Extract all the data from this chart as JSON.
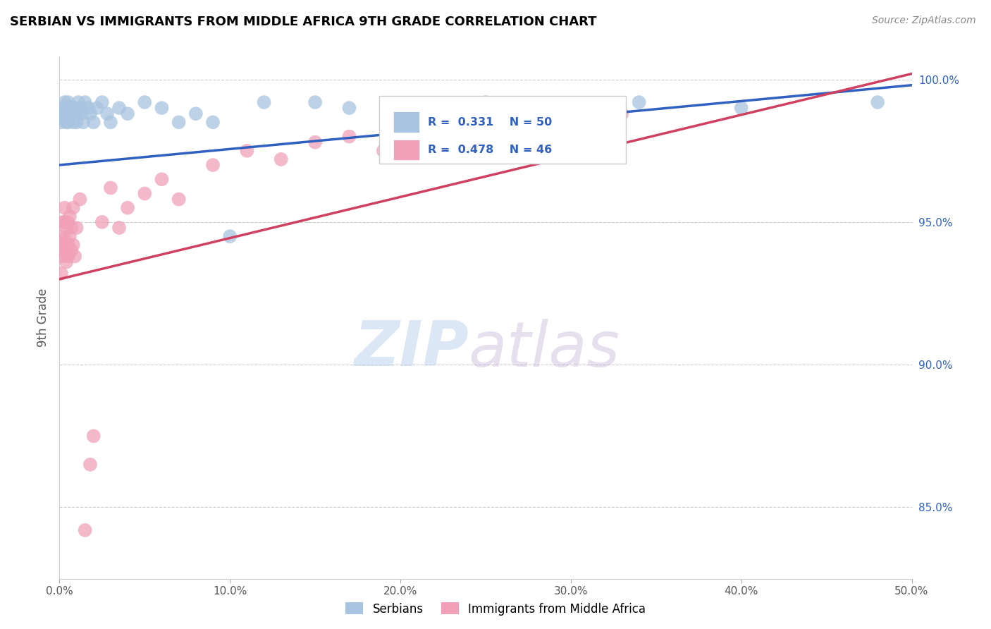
{
  "title": "SERBIAN VS IMMIGRANTS FROM MIDDLE AFRICA 9TH GRADE CORRELATION CHART",
  "source": "Source: ZipAtlas.com",
  "ylabel": "9th Grade",
  "xlim": [
    0.0,
    0.5
  ],
  "ylim": [
    0.825,
    1.008
  ],
  "xticks": [
    0.0,
    0.1,
    0.2,
    0.3,
    0.4,
    0.5
  ],
  "xtick_labels": [
    "0.0%",
    "10.0%",
    "20.0%",
    "30.0%",
    "40.0%",
    "50.0%"
  ],
  "yticks": [
    0.85,
    0.9,
    0.95,
    1.0
  ],
  "ytick_labels": [
    "85.0%",
    "90.0%",
    "95.0%",
    "100.0%"
  ],
  "blue_R": 0.331,
  "blue_N": 50,
  "pink_R": 0.478,
  "pink_N": 46,
  "blue_color": "#a8c4e0",
  "pink_color": "#f0a0b8",
  "blue_line_color": "#3060c0",
  "pink_line_color": "#d04060",
  "legend_label_blue": "Serbians",
  "legend_label_pink": "Immigrants from Middle Africa",
  "watermark_zip": "ZIP",
  "watermark_atlas": "atlas",
  "blue_scatter_x": [
    0.001,
    0.001,
    0.002,
    0.002,
    0.003,
    0.003,
    0.004,
    0.004,
    0.004,
    0.005,
    0.005,
    0.005,
    0.006,
    0.006,
    0.007,
    0.007,
    0.008,
    0.008,
    0.009,
    0.01,
    0.01,
    0.011,
    0.012,
    0.013,
    0.014,
    0.015,
    0.017,
    0.018,
    0.02,
    0.022,
    0.025,
    0.028,
    0.03,
    0.035,
    0.04,
    0.05,
    0.06,
    0.07,
    0.08,
    0.09,
    0.1,
    0.12,
    0.15,
    0.17,
    0.2,
    0.25,
    0.29,
    0.34,
    0.4,
    0.48
  ],
  "blue_scatter_y": [
    0.988,
    0.985,
    0.99,
    0.987,
    0.992,
    0.988,
    0.99,
    0.985,
    0.988,
    0.992,
    0.988,
    0.985,
    0.99,
    0.987,
    0.988,
    0.99,
    0.985,
    0.988,
    0.99,
    0.985,
    0.988,
    0.992,
    0.99,
    0.988,
    0.985,
    0.992,
    0.99,
    0.988,
    0.985,
    0.99,
    0.992,
    0.988,
    0.985,
    0.99,
    0.988,
    0.992,
    0.99,
    0.985,
    0.988,
    0.985,
    0.945,
    0.992,
    0.992,
    0.99,
    0.99,
    0.992,
    0.99,
    0.992,
    0.99,
    0.992
  ],
  "pink_scatter_x": [
    0.001,
    0.001,
    0.001,
    0.002,
    0.002,
    0.002,
    0.003,
    0.003,
    0.003,
    0.004,
    0.004,
    0.004,
    0.005,
    0.005,
    0.005,
    0.006,
    0.006,
    0.007,
    0.007,
    0.008,
    0.008,
    0.009,
    0.01,
    0.012,
    0.015,
    0.018,
    0.02,
    0.025,
    0.03,
    0.035,
    0.04,
    0.05,
    0.06,
    0.07,
    0.09,
    0.11,
    0.13,
    0.15,
    0.17,
    0.19,
    0.21,
    0.23,
    0.25,
    0.27,
    0.3,
    0.33
  ],
  "pink_scatter_y": [
    0.94,
    0.932,
    0.945,
    0.938,
    0.95,
    0.942,
    0.944,
    0.95,
    0.955,
    0.94,
    0.948,
    0.936,
    0.942,
    0.95,
    0.938,
    0.945,
    0.952,
    0.94,
    0.948,
    0.942,
    0.955,
    0.938,
    0.948,
    0.958,
    0.842,
    0.865,
    0.875,
    0.95,
    0.962,
    0.948,
    0.955,
    0.96,
    0.965,
    0.958,
    0.97,
    0.975,
    0.972,
    0.978,
    0.98,
    0.975,
    0.982,
    0.978,
    0.985,
    0.98,
    0.982,
    0.988
  ]
}
